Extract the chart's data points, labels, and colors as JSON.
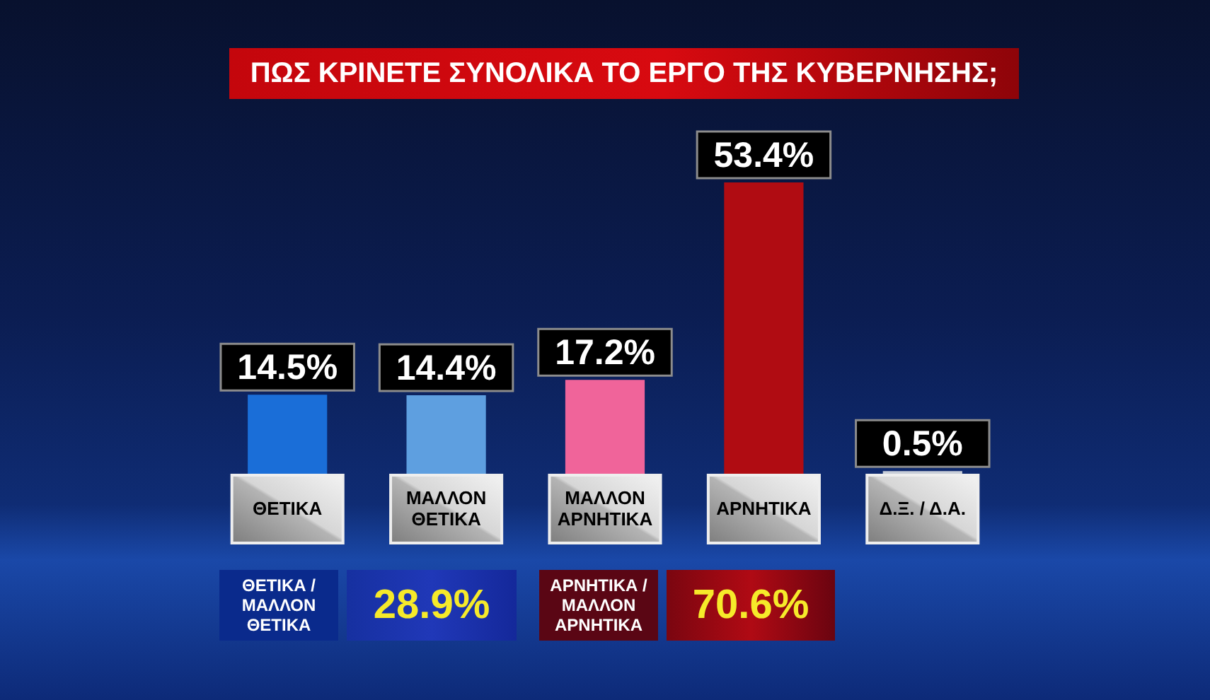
{
  "chart_data": {
    "type": "bar",
    "title": "ΠΩΣ ΚΡΙΝΕΤΕ ΣΥΝΟΛΙΚΑ ΤΟ ΕΡΓΟ ΤΗΣ ΚΥΒΕΡΝΗΣΗΣ;",
    "categories": [
      "ΘΕΤΙΚΑ",
      "ΜΑΛΛΟΝ ΘΕΤΙΚΑ",
      "ΜΑΛΛΟΝ ΑΡΝΗΤΙΚΑ",
      "ΑΡΝΗΤΙΚΑ",
      "Δ.Ξ. / Δ.Α."
    ],
    "values": [
      14.5,
      14.4,
      17.2,
      53.4,
      0.5
    ],
    "colors": [
      "#1a6ed8",
      "#5e9fe0",
      "#f0649a",
      "#b00c12",
      "#c8ced8"
    ],
    "value_labels": [
      "14.5%",
      "14.4%",
      "17.2%",
      "53.4%",
      "0.5%"
    ],
    "annotations": [
      "ΘΕΤΙΚΑ / ΜΑΛΛΟΝ ΘΕΤΙΚΑ",
      "28.9%",
      "ΑΡΝΗΤΙΚΑ / ΜΑΛΛΟΝ ΑΡΝΗΤΙΚΑ",
      "70.6%"
    ]
  }
}
